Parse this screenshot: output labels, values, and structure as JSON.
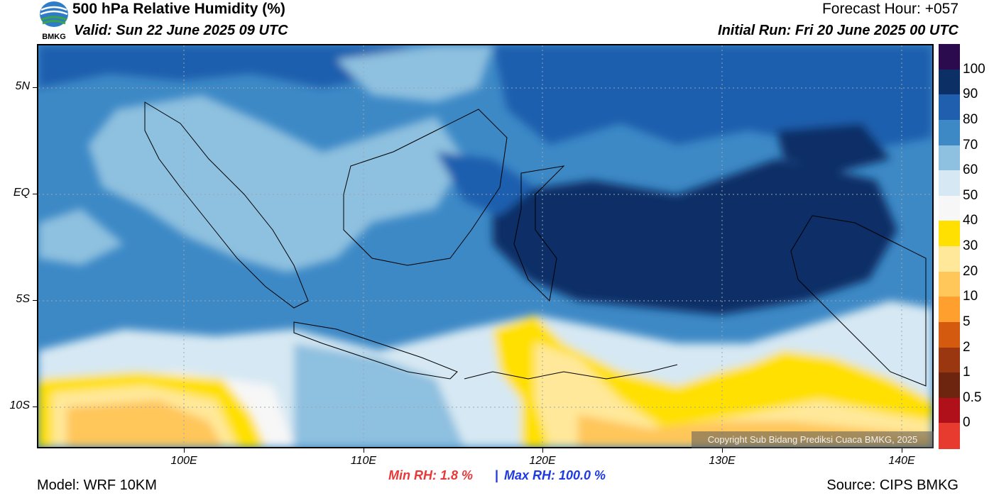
{
  "header": {
    "title": "500 hPa Relative Humidity (%)",
    "valid": "Valid: Sun 22 June 2025 09 UTC",
    "forecast_hour": "Forecast Hour: +057",
    "initial_run": "Initial Run: Fri 20 June 2025 00 UTC"
  },
  "logo": {
    "text": "BMKG"
  },
  "axes": {
    "lat_labels": [
      "5N",
      "EQ",
      "5S",
      "10S"
    ],
    "lon_labels": [
      "100E",
      "110E",
      "120E",
      "130E",
      "140E"
    ]
  },
  "colorbar": {
    "labels": [
      "100",
      "90",
      "80",
      "70",
      "60",
      "50",
      "40",
      "30",
      "20",
      "10",
      "5",
      "2",
      "1",
      "0.5",
      "0"
    ],
    "colors": [
      "#2b0a4e",
      "#0c2f66",
      "#1f5fae",
      "#3d89c6",
      "#8ec0df",
      "#d6e8f3",
      "#f7f7f7",
      "#ffe000",
      "#ffe89a",
      "#ffc65a",
      "#ff9f2e",
      "#d45a10",
      "#9a3710",
      "#6e2510",
      "#b0101a",
      "#e63b2e"
    ]
  },
  "stats": {
    "min_rh": "Min RH:   1.8 %",
    "separator": "|",
    "max_rh": "Max RH: 100.0 %"
  },
  "footer": {
    "model": "Model: WRF 10KM",
    "source": "Source: CIPS BMKG",
    "copyright": "Copyright Sub Bidang Prediksi Cuaca BMKG, 2025"
  }
}
